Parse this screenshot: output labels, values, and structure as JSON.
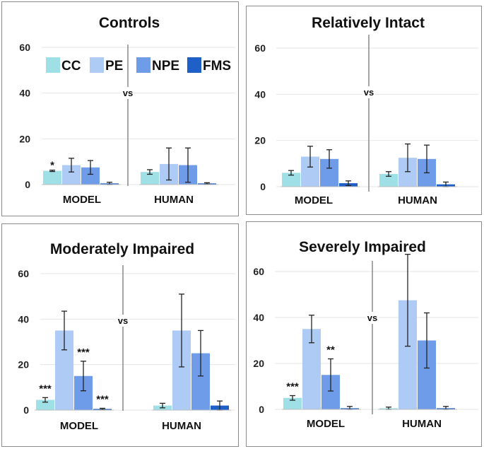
{
  "colors": {
    "CC": "#9fe0e6",
    "PE": "#aecbf5",
    "NPE": "#6f9ce8",
    "FMS": "#1f5fc8",
    "grid": "#e4e4e4",
    "divider": "#888888",
    "border": "#8c8c8c"
  },
  "chart_data": [
    {
      "type": "bar",
      "title": "Controls",
      "categories": [
        "MODEL",
        "HUMAN"
      ],
      "vs_label": "vs",
      "ylim": [
        0,
        60
      ],
      "yticks": [
        0,
        20,
        40,
        60
      ],
      "grid": true,
      "legend": [
        "CC",
        "PE",
        "NPE",
        "FMS"
      ],
      "series": [
        {
          "name": "CC",
          "values": [
            6,
            5.5
          ],
          "errors": [
            0.3,
            1
          ],
          "sig": [
            "*",
            ""
          ]
        },
        {
          "name": "PE",
          "values": [
            8.5,
            9
          ],
          "errors": [
            3,
            7
          ]
        },
        {
          "name": "NPE",
          "values": [
            7.5,
            8.5
          ],
          "errors": [
            3,
            7.5
          ]
        },
        {
          "name": "FMS",
          "values": [
            0.5,
            0.5
          ],
          "errors": [
            0.5,
            0.3
          ]
        }
      ]
    },
    {
      "type": "bar",
      "title": "Relatively Intact",
      "categories": [
        "MODEL",
        "HUMAN"
      ],
      "vs_label": "vs",
      "ylim": [
        0,
        60
      ],
      "yticks": [
        0,
        20,
        40,
        60
      ],
      "grid": true,
      "series": [
        {
          "name": "CC",
          "values": [
            6,
            5.5
          ],
          "errors": [
            1,
            1
          ]
        },
        {
          "name": "PE",
          "values": [
            13,
            12.5
          ],
          "errors": [
            4.5,
            6
          ]
        },
        {
          "name": "NPE",
          "values": [
            12,
            12
          ],
          "errors": [
            4,
            6
          ]
        },
        {
          "name": "FMS",
          "values": [
            1.5,
            1
          ],
          "errors": [
            1,
            1
          ]
        }
      ]
    },
    {
      "type": "bar",
      "title": "Moderately Impaired",
      "categories": [
        "MODEL",
        "HUMAN"
      ],
      "vs_label": "vs",
      "ylim": [
        0,
        60
      ],
      "yticks": [
        0,
        20,
        40,
        60
      ],
      "grid": true,
      "series": [
        {
          "name": "CC",
          "values": [
            4.5,
            2
          ],
          "errors": [
            1,
            1
          ],
          "sig": [
            "***",
            ""
          ]
        },
        {
          "name": "PE",
          "values": [
            35,
            35
          ],
          "errors": [
            8.5,
            16
          ]
        },
        {
          "name": "NPE",
          "values": [
            15,
            25
          ],
          "errors": [
            6.5,
            10
          ],
          "sig": [
            "***",
            ""
          ]
        },
        {
          "name": "FMS",
          "values": [
            0.5,
            2
          ],
          "errors": [
            0.3,
            2
          ],
          "sig": [
            "***",
            ""
          ]
        }
      ]
    },
    {
      "type": "bar",
      "title": "Severely Impaired",
      "categories": [
        "MODEL",
        "HUMAN"
      ],
      "vs_label": "vs",
      "ylim": [
        0,
        60
      ],
      "yticks": [
        0,
        20,
        40,
        60
      ],
      "grid": true,
      "series": [
        {
          "name": "CC",
          "values": [
            5,
            0.5
          ],
          "errors": [
            1,
            0.5
          ],
          "sig": [
            "***",
            ""
          ]
        },
        {
          "name": "PE",
          "values": [
            35,
            47.5
          ],
          "errors": [
            6,
            20
          ]
        },
        {
          "name": "NPE",
          "values": [
            15,
            30
          ],
          "errors": [
            7,
            12
          ],
          "sig": [
            "**",
            ""
          ]
        },
        {
          "name": "FMS",
          "values": [
            0.5,
            0.5
          ],
          "errors": [
            0.8,
            0.8
          ]
        }
      ]
    }
  ]
}
